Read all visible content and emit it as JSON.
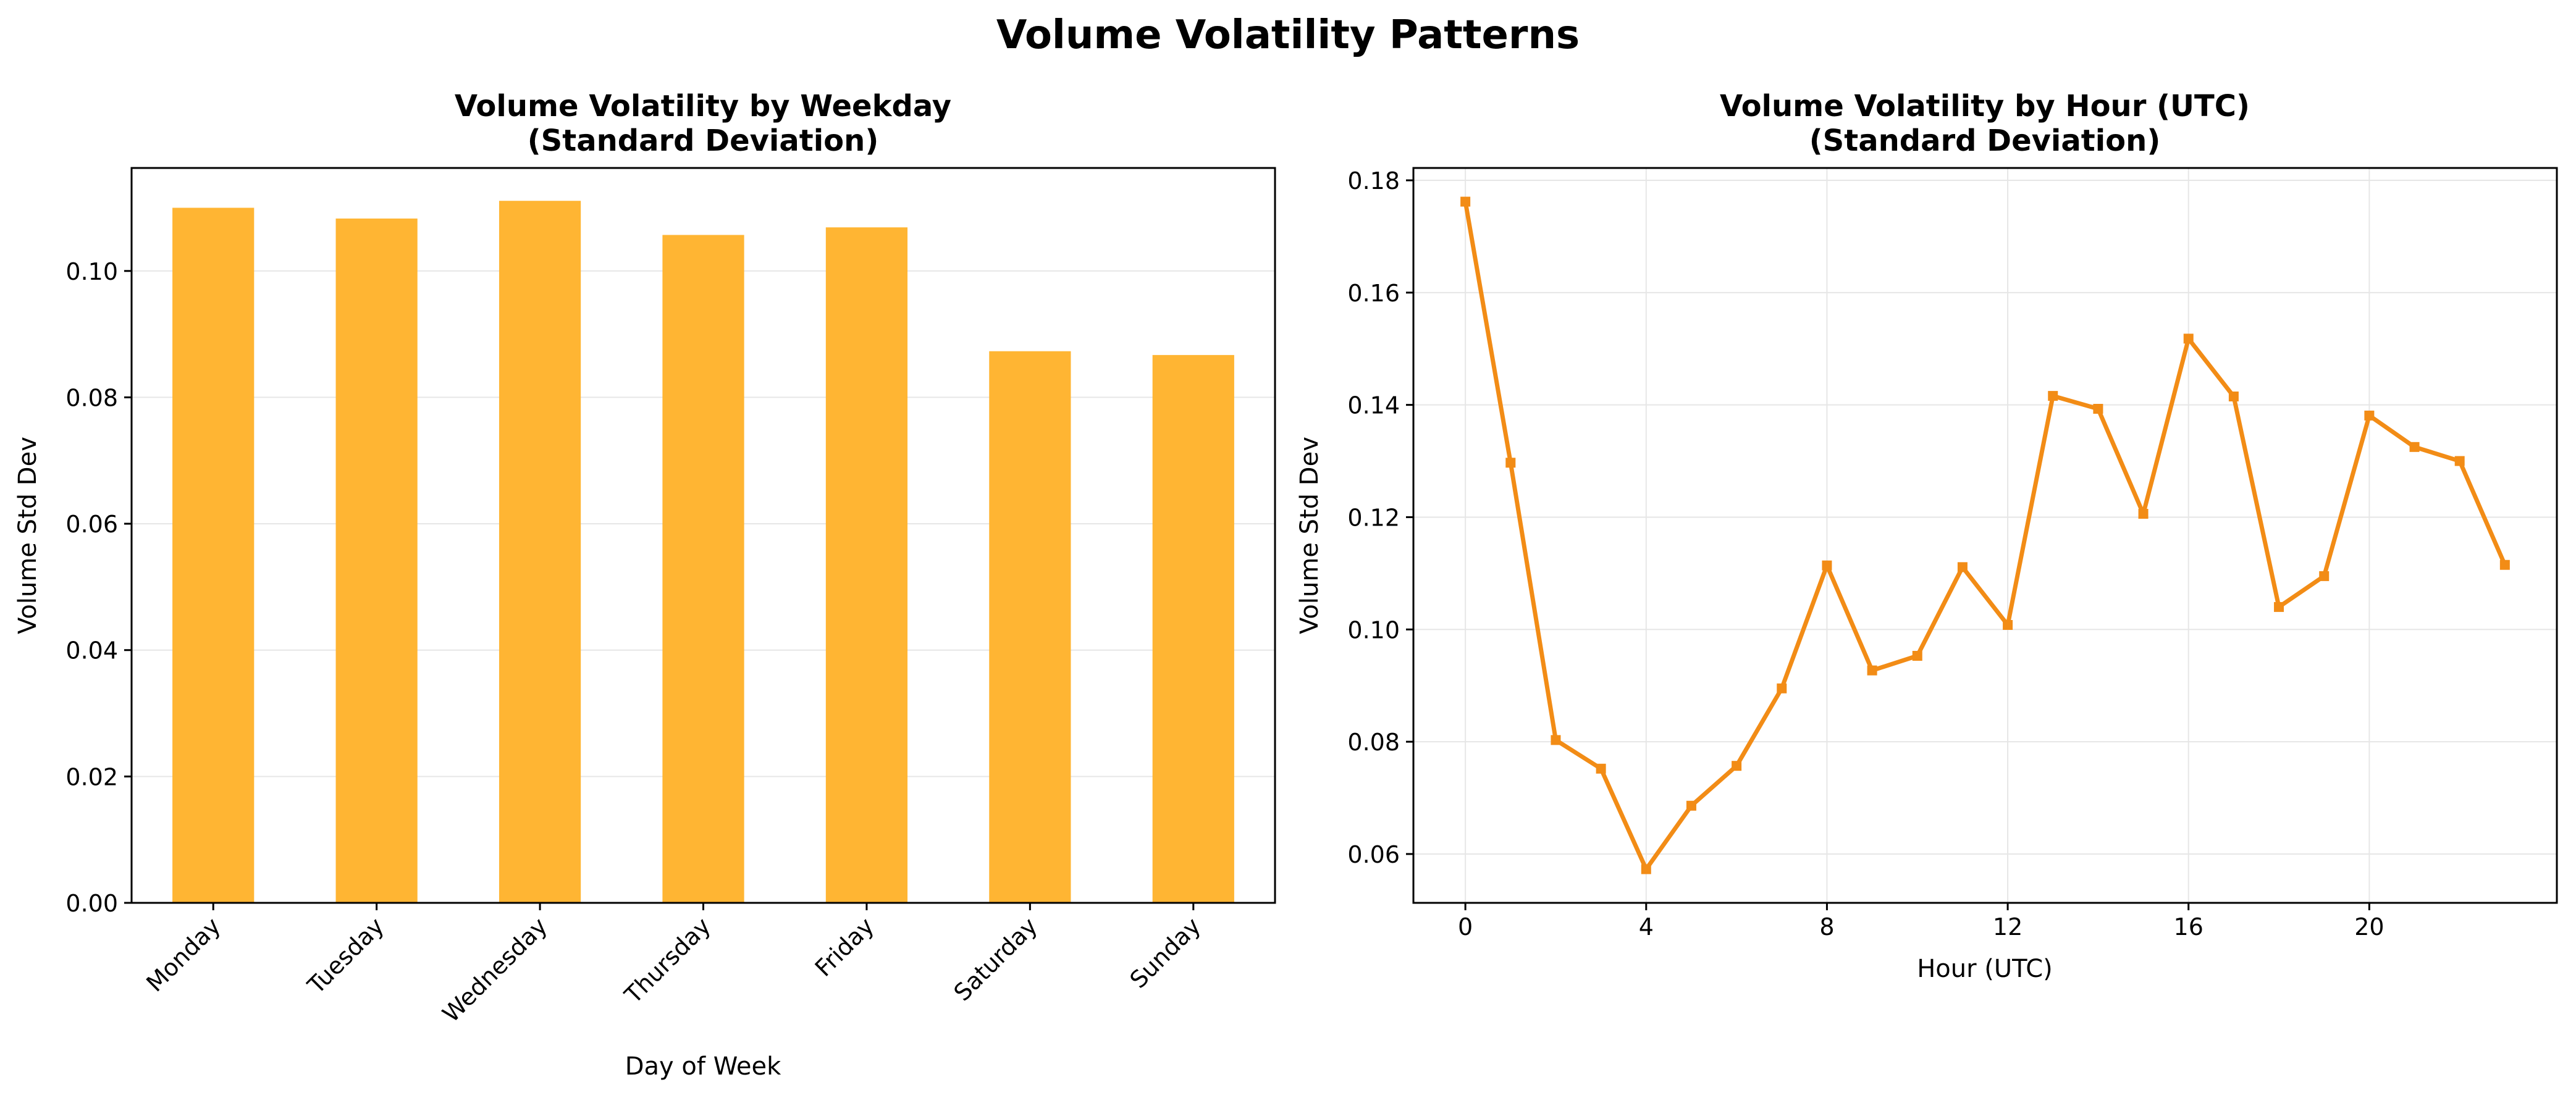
{
  "figure": {
    "title": "Volume Volatility Patterns"
  },
  "colors": {
    "bar": "#FFB533",
    "line": "#F28C16",
    "grid": "#e6e6e6",
    "axis": "#000000"
  },
  "chart_data": [
    {
      "type": "bar",
      "title_line1": "Volume Volatility by Weekday",
      "title_line2": "(Standard Deviation)",
      "xlabel": "Day of Week",
      "ylabel": "Volume Std Dev",
      "categories": [
        "Monday",
        "Tuesday",
        "Wednesday",
        "Thursday",
        "Friday",
        "Saturday",
        "Sunday"
      ],
      "values": [
        0.11,
        0.1083,
        0.1111,
        0.1057,
        0.1069,
        0.0873,
        0.0867
      ],
      "ylim": [
        0,
        0.1163
      ],
      "yticks": [
        0.0,
        0.02,
        0.04,
        0.06,
        0.08,
        0.1
      ],
      "ytick_labels": [
        "0.00",
        "0.02",
        "0.04",
        "0.06",
        "0.08",
        "0.10"
      ],
      "grid": "y"
    },
    {
      "type": "line",
      "title_line1": "Volume Volatility by Hour (UTC)",
      "title_line2": "(Standard Deviation)",
      "xlabel": "Hour (UTC)",
      "ylabel": "Volume Std Dev",
      "x": [
        0,
        1,
        2,
        3,
        4,
        5,
        6,
        7,
        8,
        9,
        10,
        11,
        12,
        13,
        14,
        15,
        16,
        17,
        18,
        19,
        20,
        21,
        22,
        23
      ],
      "values": [
        0.1762,
        0.1297,
        0.0803,
        0.0752,
        0.0573,
        0.0686,
        0.0757,
        0.0895,
        0.1114,
        0.0927,
        0.0953,
        0.1111,
        0.1008,
        0.1416,
        0.1393,
        0.1206,
        0.1518,
        0.1415,
        0.104,
        0.1095,
        0.1381,
        0.1325,
        0.13,
        0.1115
      ],
      "xlim": [
        -1.15,
        24.15
      ],
      "ylim": [
        0.0513,
        0.1822
      ],
      "xticks": [
        0,
        4,
        8,
        12,
        16,
        20
      ],
      "xtick_labels": [
        "0",
        "4",
        "8",
        "12",
        "16",
        "20"
      ],
      "yticks": [
        0.06,
        0.08,
        0.1,
        0.12,
        0.14,
        0.16,
        0.18
      ],
      "ytick_labels": [
        "0.06",
        "0.08",
        "0.10",
        "0.12",
        "0.14",
        "0.16",
        "0.18"
      ],
      "grid": "both"
    }
  ]
}
